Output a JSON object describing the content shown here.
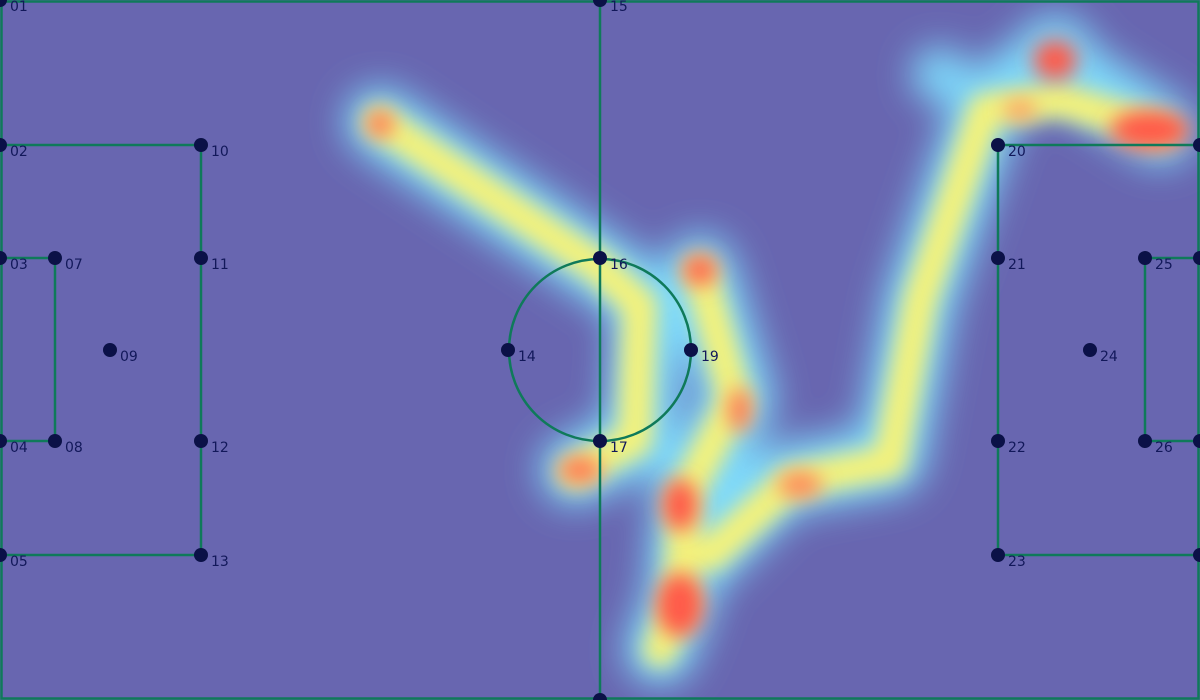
{
  "colors": {
    "pitch": "#6866b0",
    "lines": "#0f7a5a",
    "points": "#0b1147",
    "labels": "#12185a"
  },
  "points": [
    {
      "id": "01",
      "label": "01"
    },
    {
      "id": "02",
      "label": "02"
    },
    {
      "id": "03",
      "label": "03"
    },
    {
      "id": "04",
      "label": "04"
    },
    {
      "id": "05",
      "label": "05"
    },
    {
      "id": "07",
      "label": "07"
    },
    {
      "id": "08",
      "label": "08"
    },
    {
      "id": "09",
      "label": "09"
    },
    {
      "id": "10",
      "label": "10"
    },
    {
      "id": "11",
      "label": "11"
    },
    {
      "id": "12",
      "label": "12"
    },
    {
      "id": "13",
      "label": "13"
    },
    {
      "id": "14",
      "label": "14"
    },
    {
      "id": "15",
      "label": "15"
    },
    {
      "id": "16",
      "label": "16"
    },
    {
      "id": "17",
      "label": "17"
    },
    {
      "id": "19",
      "label": "19"
    },
    {
      "id": "20",
      "label": "20"
    },
    {
      "id": "21",
      "label": "21"
    },
    {
      "id": "22",
      "label": "22"
    },
    {
      "id": "23",
      "label": "23"
    },
    {
      "id": "24",
      "label": "24"
    },
    {
      "id": "25",
      "label": "25"
    },
    {
      "id": "26",
      "label": "26"
    }
  ]
}
